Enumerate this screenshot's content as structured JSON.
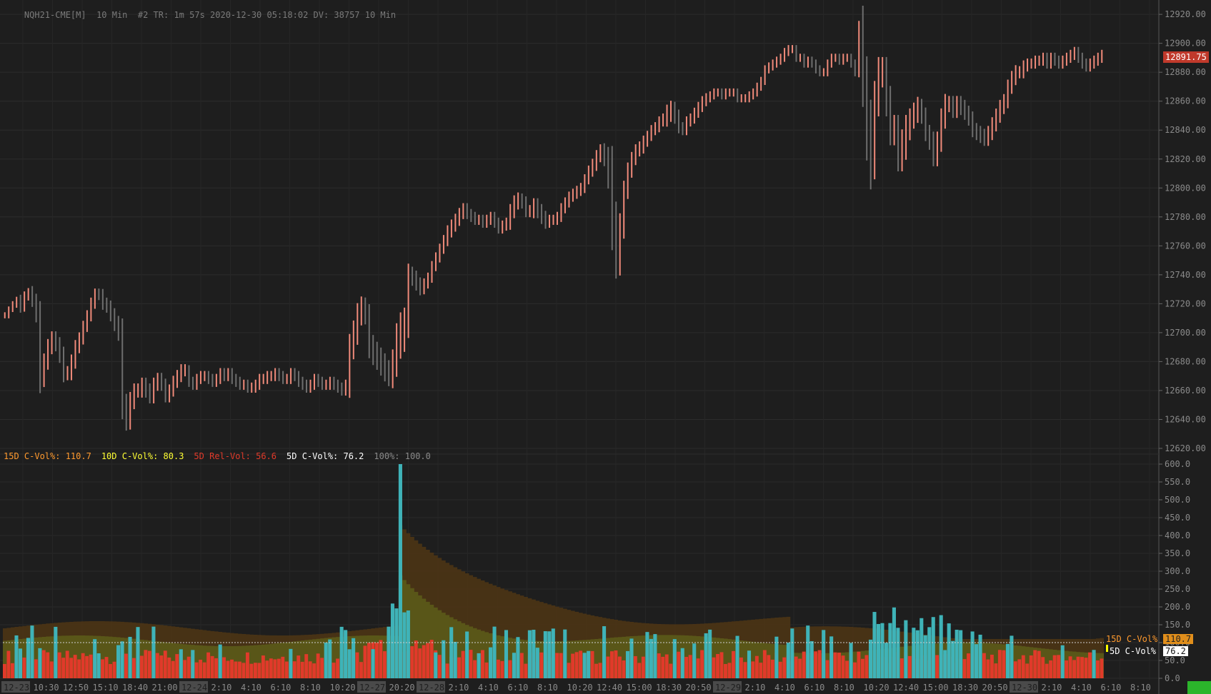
{
  "header": {
    "symbol": "NQH21-CME[M]",
    "interval": "10 Min",
    "info": "#2 TR: 1m 57s 2020-12-30 05:18:02 DV: 38757 10 Min"
  },
  "price_axis": {
    "ticks": [
      "12920.00",
      "12900.00",
      "12880.00",
      "12860.00",
      "12840.00",
      "12820.00",
      "12800.00",
      "12780.00",
      "12760.00",
      "12740.00",
      "12720.00",
      "12700.00",
      "12680.00",
      "12660.00",
      "12640.00",
      "12620.00"
    ],
    "last_price": "12891.75",
    "last_price_color": "#c0392b"
  },
  "volume_legend": [
    {
      "text": "15D C-Vol%: 110.7",
      "color": "#ff9a2e"
    },
    {
      "text": "10D C-Vol%: 80.3",
      "color": "#ffff33"
    },
    {
      "text": "5D Rel-Vol: 56.6",
      "color": "#e03a2a"
    },
    {
      "text": "5D C-Vol%: 76.2",
      "color": "#ffffff"
    },
    {
      "text": "100%: 100.0",
      "color": "#8a8a8a"
    }
  ],
  "volume_axis": {
    "ticks": [
      "600.0",
      "550.0",
      "500.0",
      "450.0",
      "400.0",
      "350.0",
      "300.0",
      "250.0",
      "200.0",
      "150.0",
      "100.0",
      "50.0",
      "0.0"
    ],
    "tag_15d_label": "15D C-Vol%",
    "tag_15d_value": "110.7",
    "tag_5d_label": "5D C-Vol%",
    "tag_5d_value": "76.2"
  },
  "time_axis": [
    {
      "label": "12-23",
      "boxed": true
    },
    {
      "label": "10:30",
      "boxed": false
    },
    {
      "label": "12:50",
      "boxed": false
    },
    {
      "label": "15:10",
      "boxed": false
    },
    {
      "label": "18:40",
      "boxed": false
    },
    {
      "label": "21:00",
      "boxed": false
    },
    {
      "label": "12-24",
      "boxed": true
    },
    {
      "label": "2:10",
      "boxed": false
    },
    {
      "label": "4:10",
      "boxed": false
    },
    {
      "label": "6:10",
      "boxed": false
    },
    {
      "label": "8:10",
      "boxed": false
    },
    {
      "label": "10:20",
      "boxed": false
    },
    {
      "label": "12-27",
      "boxed": true
    },
    {
      "label": "20:20",
      "boxed": false
    },
    {
      "label": "12-28",
      "boxed": true
    },
    {
      "label": "2:10",
      "boxed": false
    },
    {
      "label": "4:10",
      "boxed": false
    },
    {
      "label": "6:10",
      "boxed": false
    },
    {
      "label": "8:10",
      "boxed": false
    },
    {
      "label": "10:20",
      "boxed": false
    },
    {
      "label": "12:40",
      "boxed": false
    },
    {
      "label": "15:00",
      "boxed": false
    },
    {
      "label": "18:30",
      "boxed": false
    },
    {
      "label": "20:50",
      "boxed": false
    },
    {
      "label": "12-29",
      "boxed": true
    },
    {
      "label": "2:10",
      "boxed": false
    },
    {
      "label": "4:10",
      "boxed": false
    },
    {
      "label": "6:10",
      "boxed": false
    },
    {
      "label": "8:10",
      "boxed": false
    },
    {
      "label": "10:20",
      "boxed": false
    },
    {
      "label": "12:40",
      "boxed": false
    },
    {
      "label": "15:00",
      "boxed": false
    },
    {
      "label": "18:30",
      "boxed": false
    },
    {
      "label": "20:50",
      "boxed": false
    },
    {
      "label": "12-30",
      "boxed": true
    },
    {
      "label": "2:10",
      "boxed": false
    },
    {
      "label": "4:10",
      "boxed": false
    },
    {
      "label": "6:10",
      "boxed": false
    },
    {
      "label": "8:10",
      "boxed": false
    }
  ],
  "chart_data": [
    {
      "type": "ohlc",
      "name": "NQH21-CME[M] 10 Min",
      "y_range": [
        12620,
        12925
      ],
      "colors": {
        "up": "#f08a7a",
        "down": "#6e6e6e"
      },
      "closes": [
        12712,
        12716,
        12720,
        12722,
        12718,
        12725,
        12728,
        12722,
        12712,
        12668,
        12680,
        12690,
        12696,
        12692,
        12684,
        12672,
        12672,
        12680,
        12690,
        12696,
        12704,
        12712,
        12720,
        12727,
        12726,
        12720,
        12718,
        12712,
        12706,
        12700,
        12650,
        12640,
        12652,
        12660,
        12660,
        12664,
        12660,
        12656,
        12664,
        12668,
        12664,
        12656,
        12660,
        12666,
        12670,
        12674,
        12674,
        12666,
        12664,
        12668,
        12670,
        12670,
        12668,
        12666,
        12668,
        12672,
        12670,
        12672,
        12668,
        12666,
        12664,
        12664,
        12662,
        12662,
        12664,
        12668,
        12668,
        12670,
        12670,
        12672,
        12670,
        12668,
        12668,
        12672,
        12670,
        12666,
        12664,
        12662,
        12664,
        12668,
        12666,
        12664,
        12664,
        12666,
        12664,
        12662,
        12660,
        12664,
        12690,
        12700,
        12712,
        12718,
        12712,
        12690,
        12686,
        12682,
        12678,
        12674,
        12670,
        12680,
        12696,
        12700,
        12704,
        12740,
        12738,
        12734,
        12730,
        12734,
        12738,
        12746,
        12752,
        12758,
        12764,
        12770,
        12774,
        12778,
        12782,
        12786,
        12782,
        12780,
        12778,
        12778,
        12776,
        12778,
        12780,
        12776,
        12772,
        12774,
        12776,
        12784,
        12790,
        12792,
        12790,
        12784,
        12784,
        12788,
        12784,
        12780,
        12776,
        12778,
        12778,
        12780,
        12786,
        12790,
        12794,
        12796,
        12798,
        12800,
        12806,
        12812,
        12816,
        12822,
        12826,
        12820,
        12808,
        12778,
        12750,
        12772,
        12798,
        12812,
        12820,
        12826,
        12828,
        12832,
        12836,
        12840,
        12842,
        12846,
        12848,
        12852,
        12854,
        12850,
        12842,
        12840,
        12846,
        12848,
        12852,
        12856,
        12860,
        12862,
        12864,
        12866,
        12866,
        12864,
        12866,
        12866,
        12866,
        12862,
        12862,
        12862,
        12864,
        12866,
        12870,
        12874,
        12882,
        12884,
        12886,
        12888,
        12890,
        12894,
        12896,
        12896,
        12890,
        12890,
        12886,
        12888,
        12886,
        12882,
        12880,
        12880,
        12886,
        12890,
        12890,
        12888,
        12890,
        12890,
        12886,
        12880,
        12912,
        12870,
        12840,
        12820,
        12860,
        12880,
        12880,
        12860,
        12840,
        12840,
        12822,
        12830,
        12840,
        12848,
        12852,
        12856,
        12850,
        12838,
        12832,
        12822,
        12832,
        12848,
        12858,
        12858,
        12854,
        12858,
        12856,
        12852,
        12848,
        12840,
        12838,
        12836,
        12834,
        12838,
        12844,
        12850,
        12856,
        12860,
        12870,
        12876,
        12880,
        12880,
        12884,
        12886,
        12886,
        12888,
        12888,
        12890,
        12886,
        12890,
        12888,
        12886,
        12888,
        12890,
        12892,
        12894,
        12890,
        12886,
        12884,
        12886,
        12888,
        12890,
        12892
      ],
      "ranges": [
        6,
        6,
        5,
        8,
        12,
        10,
        8,
        12,
        14,
        28,
        16,
        16,
        14,
        14,
        14,
        18,
        14,
        14,
        14,
        12,
        12,
        10,
        12,
        10,
        10,
        12,
        12,
        12,
        14,
        16,
        28,
        22,
        20,
        14,
        14,
        14,
        14,
        14,
        14,
        12,
        12,
        12,
        12,
        12,
        12,
        12,
        12,
        10,
        10,
        10,
        10,
        10,
        10,
        10,
        10,
        10,
        10,
        10,
        10,
        10,
        10,
        10,
        10,
        10,
        10,
        10,
        10,
        10,
        10,
        10,
        10,
        10,
        10,
        10,
        10,
        10,
        10,
        10,
        10,
        10,
        10,
        10,
        10,
        10,
        10,
        10,
        10,
        10,
        26,
        24,
        24,
        20,
        18,
        22,
        24,
        22,
        22,
        22,
        20,
        24,
        30,
        40,
        38,
        22,
        16,
        14,
        12,
        10,
        10,
        10,
        10,
        10,
        10,
        12,
        12,
        12,
        12,
        10,
        10,
        10,
        10,
        10,
        10,
        10,
        10,
        10,
        10,
        10,
        10,
        14,
        14,
        14,
        12,
        12,
        12,
        14,
        14,
        14,
        12,
        10,
        10,
        10,
        10,
        10,
        10,
        10,
        10,
        10,
        10,
        10,
        12,
        12,
        12,
        14,
        24,
        60,
        36,
        30,
        20,
        16,
        14,
        12,
        12,
        12,
        10,
        10,
        10,
        10,
        10,
        16,
        18,
        16,
        12,
        10,
        10,
        10,
        10,
        10,
        10,
        10,
        8,
        8,
        8,
        8,
        8,
        8,
        8,
        8,
        8,
        8,
        8,
        8,
        8,
        8,
        8,
        8,
        8,
        8,
        8,
        8,
        8,
        8,
        8,
        8,
        8,
        8,
        8,
        8,
        8,
        8,
        8,
        8,
        8,
        8,
        8,
        8,
        8,
        8,
        10,
        40,
        60,
        60,
        40,
        30,
        30,
        30,
        30,
        30,
        30,
        30,
        30,
        20,
        20,
        20,
        16,
        16,
        16,
        20,
        20,
        20,
        20,
        16,
        16,
        16,
        16,
        14,
        14,
        14,
        14,
        14,
        14,
        14,
        14,
        14,
        14,
        14,
        14,
        14,
        14,
        12,
        12,
        10,
        10,
        10,
        10,
        10,
        10,
        10,
        10,
        10,
        10,
        10,
        10,
        10,
        10,
        10,
        10,
        10,
        10,
        10,
        10,
        10,
        10,
        10,
        10
      ]
    },
    {
      "type": "volume-study",
      "y_range": [
        0,
        600
      ],
      "reference_line": 100,
      "colors": {
        "15d": "#4a3415",
        "10d": "#5b5a18",
        "5d_rel": "#e03a2a",
        "5d_cvol": "#3fb3b8",
        "bg_band": "#6b6430"
      },
      "spike_index": 101,
      "spike_value": 600
    }
  ]
}
